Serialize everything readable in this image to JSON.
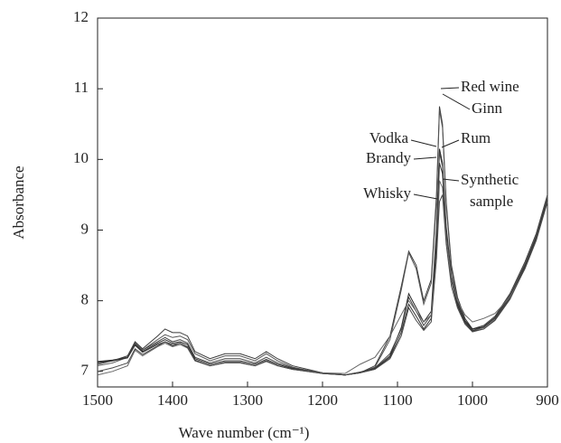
{
  "chart_data": {
    "type": "line",
    "xlabel": "Wave number (cm⁻¹)",
    "ylabel": "Absorbance",
    "xlim": [
      1500,
      900
    ],
    "ylim": [
      6.78,
      12
    ],
    "xticks": [
      1500,
      1400,
      1300,
      1200,
      1100,
      1000,
      900
    ],
    "yticks": [
      7,
      8,
      9,
      10,
      11,
      12
    ],
    "x": [
      1500,
      1480,
      1460,
      1450,
      1440,
      1420,
      1410,
      1400,
      1390,
      1380,
      1370,
      1350,
      1330,
      1310,
      1290,
      1275,
      1260,
      1240,
      1200,
      1170,
      1150,
      1130,
      1110,
      1095,
      1085,
      1075,
      1065,
      1055,
      1048,
      1044,
      1040,
      1035,
      1028,
      1020,
      1010,
      1000,
      985,
      970,
      950,
      930,
      915,
      900
    ],
    "series": [
      {
        "name": "Red wine",
        "color": "#3a3a3a",
        "values": [
          7.1,
          7.15,
          7.22,
          7.42,
          7.32,
          7.5,
          7.6,
          7.55,
          7.55,
          7.5,
          7.28,
          7.18,
          7.25,
          7.25,
          7.18,
          7.28,
          7.18,
          7.08,
          6.98,
          6.95,
          6.98,
          7.08,
          7.5,
          8.2,
          8.7,
          8.5,
          8.0,
          8.3,
          9.5,
          10.75,
          10.5,
          9.4,
          8.5,
          8.05,
          7.75,
          7.6,
          7.65,
          7.78,
          8.1,
          8.55,
          8.95,
          9.5
        ]
      },
      {
        "name": "Ginn",
        "color": "#555555",
        "values": [
          7.08,
          7.12,
          7.2,
          7.4,
          7.3,
          7.45,
          7.52,
          7.48,
          7.5,
          7.45,
          7.25,
          7.15,
          7.22,
          7.22,
          7.15,
          7.25,
          7.15,
          7.06,
          6.97,
          6.95,
          6.98,
          7.06,
          7.45,
          8.15,
          8.68,
          8.45,
          7.95,
          8.25,
          9.4,
          10.7,
          10.45,
          9.35,
          8.45,
          8.0,
          7.72,
          7.58,
          7.63,
          7.76,
          8.08,
          8.52,
          8.92,
          9.48
        ]
      },
      {
        "name": "Vodka",
        "color": "#2a2a2a",
        "values": [
          7.14,
          7.16,
          7.2,
          7.38,
          7.28,
          7.4,
          7.45,
          7.4,
          7.42,
          7.38,
          7.18,
          7.1,
          7.15,
          7.15,
          7.1,
          7.17,
          7.1,
          7.04,
          6.98,
          6.95,
          6.99,
          7.04,
          7.22,
          7.62,
          8.1,
          7.9,
          7.7,
          7.85,
          9.0,
          10.15,
          9.95,
          9.05,
          8.35,
          7.98,
          7.72,
          7.6,
          7.63,
          7.76,
          8.06,
          8.5,
          8.9,
          9.45
        ]
      },
      {
        "name": "Rum",
        "color": "#444444",
        "values": [
          7.12,
          7.15,
          7.2,
          7.4,
          7.3,
          7.42,
          7.48,
          7.42,
          7.45,
          7.4,
          7.2,
          7.12,
          7.18,
          7.18,
          7.12,
          7.2,
          7.12,
          7.05,
          6.98,
          6.95,
          6.99,
          7.05,
          7.25,
          7.6,
          8.05,
          7.85,
          7.65,
          7.8,
          8.9,
          10.1,
          9.9,
          9.0,
          8.3,
          7.95,
          7.7,
          7.58,
          7.62,
          7.75,
          8.05,
          8.5,
          8.9,
          9.45
        ]
      },
      {
        "name": "Brandy",
        "color": "#333333",
        "values": [
          7.13,
          7.15,
          7.19,
          7.37,
          7.27,
          7.38,
          7.42,
          7.38,
          7.4,
          7.35,
          7.16,
          7.08,
          7.12,
          7.12,
          7.08,
          7.15,
          7.08,
          7.03,
          6.97,
          6.95,
          6.98,
          7.03,
          7.2,
          7.55,
          7.95,
          7.78,
          7.6,
          7.75,
          8.8,
          9.95,
          9.8,
          8.95,
          8.28,
          7.93,
          7.69,
          7.57,
          7.6,
          7.73,
          8.03,
          8.48,
          8.88,
          9.42
        ]
      },
      {
        "name": "Synthetic sample",
        "color": "#666666",
        "values": [
          6.95,
          7.0,
          7.08,
          7.3,
          7.22,
          7.35,
          7.4,
          7.35,
          7.38,
          7.33,
          7.15,
          7.08,
          7.12,
          7.12,
          7.08,
          7.14,
          7.08,
          7.03,
          6.98,
          6.97,
          7.1,
          7.2,
          7.5,
          7.8,
          8.0,
          7.85,
          7.7,
          7.8,
          8.6,
          9.7,
          9.6,
          8.9,
          8.3,
          8.0,
          7.8,
          7.7,
          7.75,
          7.82,
          8.05,
          8.45,
          8.85,
          9.4
        ]
      },
      {
        "name": "Whisky",
        "color": "#4a4a4a",
        "values": [
          7.0,
          7.05,
          7.12,
          7.32,
          7.24,
          7.36,
          7.42,
          7.36,
          7.4,
          7.34,
          7.15,
          7.08,
          7.13,
          7.13,
          7.08,
          7.15,
          7.08,
          7.03,
          6.97,
          6.95,
          6.98,
          7.03,
          7.18,
          7.5,
          7.9,
          7.72,
          7.58,
          7.7,
          8.6,
          9.4,
          9.5,
          8.8,
          8.2,
          7.9,
          7.67,
          7.56,
          7.6,
          7.72,
          8.02,
          8.46,
          8.86,
          9.4
        ]
      }
    ],
    "annotations": [
      {
        "lines": [
          "Red wine"
        ]
      },
      {
        "lines": [
          "Ginn"
        ]
      },
      {
        "lines": [
          "Vodka"
        ]
      },
      {
        "lines": [
          "Rum"
        ]
      },
      {
        "lines": [
          "Brandy"
        ]
      },
      {
        "lines": [
          "Synthetic",
          "sample"
        ]
      },
      {
        "lines": [
          "Whisky"
        ]
      }
    ]
  }
}
